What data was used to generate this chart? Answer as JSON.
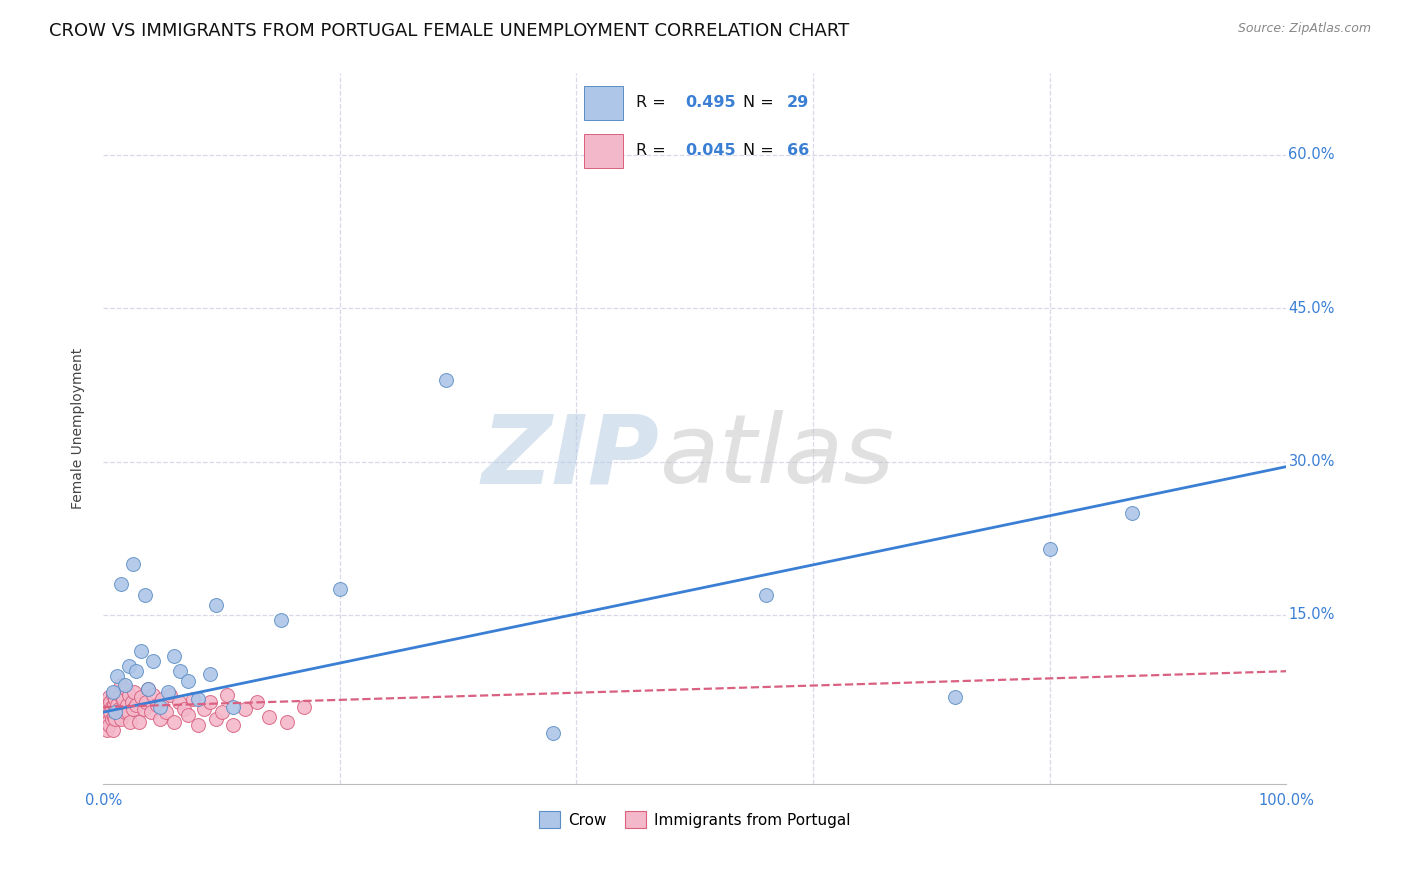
{
  "title": "CROW VS IMMIGRANTS FROM PORTUGAL FEMALE UNEMPLOYMENT CORRELATION CHART",
  "source": "Source: ZipAtlas.com",
  "ylabel": "Female Unemployment",
  "crow_color": "#aec6e8",
  "crow_edge_color": "#5b8ec4",
  "portugal_color": "#f4b8cb",
  "portugal_edge_color": "#d9607e",
  "crow_line_color": "#3a7fd4",
  "portugal_line_color": "#d96080",
  "background_color": "#ffffff",
  "grid_color": "#d8d8e8",
  "title_fontsize": 13,
  "axis_label_fontsize": 10,
  "tick_fontsize": 10.5,
  "scatter_size": 100,
  "xlim": [
    0.0,
    1.0
  ],
  "ylim": [
    -0.015,
    0.68
  ],
  "crow_scatter_x": [
    0.008,
    0.012,
    0.018,
    0.022,
    0.028,
    0.032,
    0.038,
    0.042,
    0.048,
    0.06,
    0.065,
    0.072,
    0.08,
    0.09,
    0.01,
    0.025,
    0.055,
    0.095,
    0.015,
    0.035,
    0.11,
    0.15,
    0.2,
    0.29,
    0.38,
    0.56,
    0.72,
    0.8,
    0.87
  ],
  "crow_scatter_y": [
    0.075,
    0.09,
    0.082,
    0.1,
    0.095,
    0.115,
    0.078,
    0.105,
    0.06,
    0.11,
    0.095,
    0.085,
    0.068,
    0.092,
    0.055,
    0.2,
    0.075,
    0.16,
    0.18,
    0.17,
    0.06,
    0.145,
    0.175,
    0.38,
    0.035,
    0.17,
    0.07,
    0.215,
    0.25
  ],
  "portugal_scatter_x": [
    0.001,
    0.002,
    0.003,
    0.003,
    0.004,
    0.004,
    0.005,
    0.005,
    0.006,
    0.006,
    0.007,
    0.007,
    0.008,
    0.008,
    0.009,
    0.009,
    0.01,
    0.01,
    0.011,
    0.011,
    0.012,
    0.013,
    0.014,
    0.015,
    0.015,
    0.016,
    0.017,
    0.018,
    0.019,
    0.02,
    0.021,
    0.022,
    0.023,
    0.024,
    0.025,
    0.026,
    0.028,
    0.03,
    0.032,
    0.034,
    0.036,
    0.038,
    0.04,
    0.042,
    0.045,
    0.048,
    0.05,
    0.053,
    0.056,
    0.06,
    0.064,
    0.068,
    0.072,
    0.076,
    0.08,
    0.085,
    0.09,
    0.095,
    0.1,
    0.105,
    0.11,
    0.12,
    0.13,
    0.14,
    0.155,
    0.17
  ],
  "portugal_scatter_y": [
    0.055,
    0.048,
    0.062,
    0.038,
    0.055,
    0.045,
    0.07,
    0.042,
    0.055,
    0.065,
    0.048,
    0.06,
    0.072,
    0.038,
    0.05,
    0.062,
    0.048,
    0.068,
    0.055,
    0.075,
    0.062,
    0.058,
    0.072,
    0.048,
    0.082,
    0.058,
    0.068,
    0.055,
    0.078,
    0.062,
    0.055,
    0.072,
    0.045,
    0.065,
    0.058,
    0.075,
    0.062,
    0.045,
    0.07,
    0.058,
    0.065,
    0.078,
    0.055,
    0.072,
    0.062,
    0.048,
    0.068,
    0.055,
    0.072,
    0.045,
    0.065,
    0.058,
    0.052,
    0.068,
    0.042,
    0.058,
    0.065,
    0.048,
    0.055,
    0.072,
    0.042,
    0.058,
    0.065,
    0.05,
    0.045,
    0.06
  ],
  "crow_trend_x": [
    0.0,
    1.0
  ],
  "crow_trend_y": [
    0.055,
    0.295
  ],
  "portugal_trend_x": [
    0.0,
    1.0
  ],
  "portugal_trend_y": [
    0.06,
    0.095
  ],
  "ytick_vals": [
    0.15,
    0.3,
    0.45,
    0.6
  ],
  "ytick_labels": [
    "15.0%",
    "30.0%",
    "45.0%",
    "60.0%"
  ],
  "xtick_vals": [
    0.0,
    0.2,
    0.4,
    0.6,
    0.8,
    1.0
  ],
  "xtick_labels": [
    "0.0%",
    "",
    "",
    "",
    "",
    "100.0%"
  ],
  "legend_crow_R": "R = 0.495",
  "legend_crow_N": "N = 29",
  "legend_port_R": "R = 0.045",
  "legend_port_N": "N = 66"
}
